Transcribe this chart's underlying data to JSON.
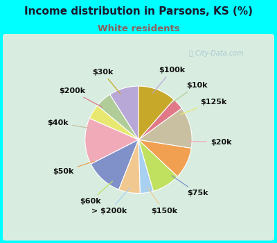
{
  "title": "Income distribution in Parsons, KS (%)",
  "subtitle": "White residents",
  "title_color": "#1a1a2e",
  "subtitle_color": "#8B6060",
  "background_color": "#00ffff",
  "chart_bg_left": "#d8ede0",
  "chart_bg_right": "#e8f5f0",
  "watermark": "City-Data.com",
  "labels": [
    "$100k",
    "$10k",
    "$125k",
    "$20k",
    "$75k",
    "$150k",
    "> $200k",
    "$60k",
    "$50k",
    "$40k",
    "$200k",
    "$30k"
  ],
  "values": [
    9.0,
    5.0,
    4.5,
    14.0,
    11.5,
    6.5,
    4.0,
    8.5,
    9.5,
    12.5,
    3.5,
    11.5
  ],
  "colors": [
    "#b8a8d8",
    "#b0cc98",
    "#e8e870",
    "#f0aab8",
    "#8090c8",
    "#f0c890",
    "#a8d0f0",
    "#c0e060",
    "#f0a050",
    "#c8c0a0",
    "#e07888",
    "#c8a828"
  ],
  "label_fontsize": 8,
  "startangle": 90
}
